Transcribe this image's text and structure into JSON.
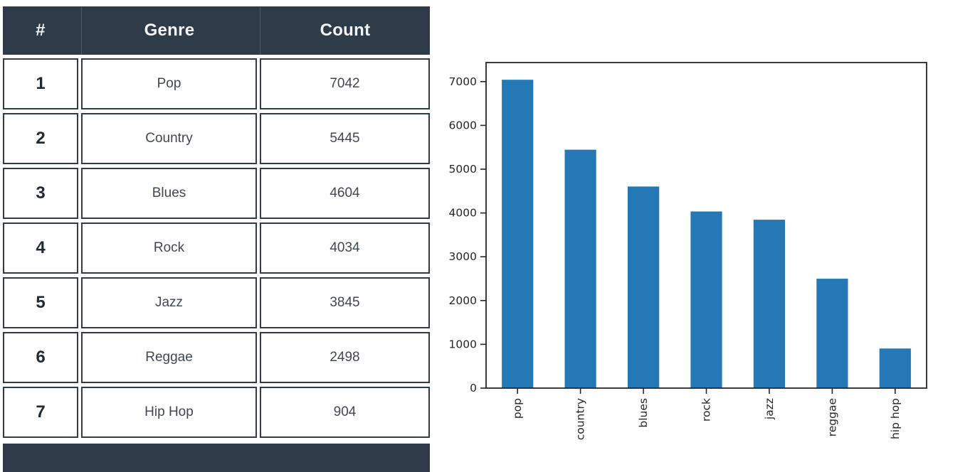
{
  "table": {
    "columns": [
      "#",
      "Genre",
      "Count"
    ],
    "rows": [
      {
        "rank": "1",
        "genre": "Pop",
        "count": "7042"
      },
      {
        "rank": "2",
        "genre": "Country",
        "count": "5445"
      },
      {
        "rank": "3",
        "genre": "Blues",
        "count": "4604"
      },
      {
        "rank": "4",
        "genre": "Rock",
        "count": "4034"
      },
      {
        "rank": "5",
        "genre": "Jazz",
        "count": "3845"
      },
      {
        "rank": "6",
        "genre": "Reggae",
        "count": "2498"
      },
      {
        "rank": "7",
        "genre": "Hip Hop",
        "count": "904"
      }
    ]
  },
  "chart_data": {
    "type": "bar",
    "categories": [
      "pop",
      "country",
      "blues",
      "rock",
      "jazz",
      "reggae",
      "hip hop"
    ],
    "values": [
      7042,
      5445,
      4604,
      4034,
      3845,
      2498,
      904
    ],
    "title": "",
    "xlabel": "",
    "ylabel": "",
    "ylim": [
      0,
      7435
    ],
    "yticks": [
      0,
      1000,
      2000,
      3000,
      4000,
      5000,
      6000,
      7000
    ],
    "grid": false,
    "legend_position": "none",
    "bar_color": "#2378b5",
    "axis_color": "#262626",
    "xtick_rotation": 90
  },
  "colors": {
    "table_header_bg": "#2e3c4a",
    "table_border": "#2e3c4a",
    "table_header_separator": "#4e5c67",
    "cell_text": "#3e4852",
    "rank_text": "#1f2a33",
    "bar_blue": "#2378b5"
  }
}
